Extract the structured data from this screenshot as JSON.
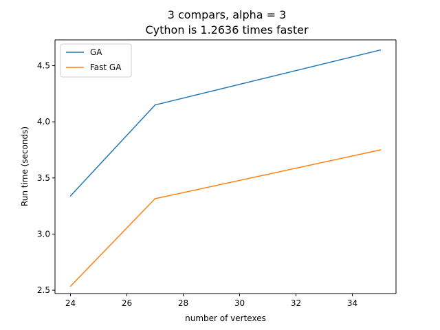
{
  "chart_data": {
    "type": "line",
    "title": [
      "3 compars, alpha = 3",
      "Cython is 1.2636 times faster"
    ],
    "xlabel": "number of vertexes",
    "ylabel": "Run time (seconds)",
    "xlim": [
      23.45,
      35.55
    ],
    "ylim": [
      2.47,
      4.73
    ],
    "xticks": [
      24,
      26,
      28,
      30,
      32,
      34
    ],
    "yticks": [
      2.5,
      3.0,
      3.5,
      4.0,
      4.5
    ],
    "xtick_labels": [
      "24",
      "26",
      "28",
      "30",
      "32",
      "34"
    ],
    "ytick_labels": [
      "2.5",
      "3.0",
      "3.5",
      "4.0",
      "4.5"
    ],
    "legend_position": "top-left",
    "grid": false,
    "series": [
      {
        "name": "GA",
        "color": "#1f77b4",
        "x": [
          24,
          27,
          35
        ],
        "y": [
          3.34,
          4.15,
          4.64
        ]
      },
      {
        "name": "Fast GA",
        "color": "#ff7f0e",
        "x": [
          24,
          27,
          35
        ],
        "y": [
          2.535,
          3.315,
          3.75
        ]
      }
    ]
  }
}
